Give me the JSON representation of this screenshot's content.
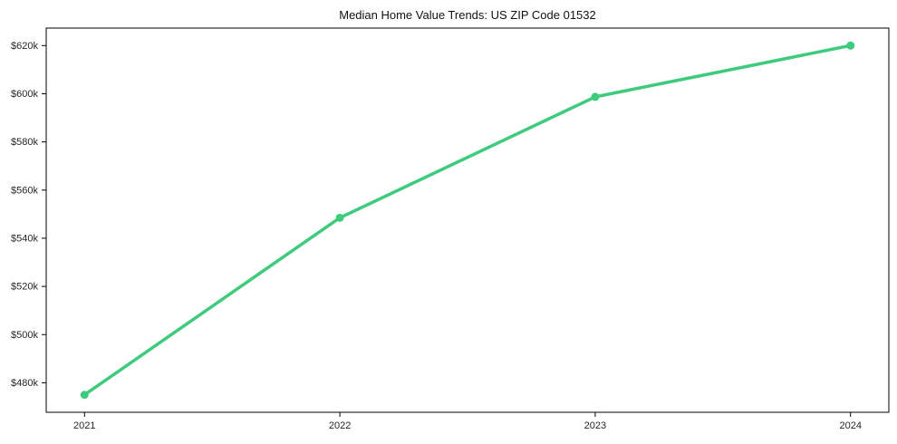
{
  "figure": {
    "background_color": "#ffffff"
  },
  "chart_data": {
    "type": "line",
    "title": "Median Home Value Trends: US ZIP Code 01532",
    "xlabel": "",
    "ylabel": "",
    "x": [
      2021,
      2022,
      2023,
      2024
    ],
    "x_tick_labels": [
      "2021",
      "2022",
      "2023",
      "2024"
    ],
    "series": [
      {
        "values": [
          475000,
          548500,
          598700,
          620000
        ],
        "color": "#3ecb7e",
        "marker": "circle"
      }
    ],
    "y_ticks": [
      480000,
      500000,
      520000,
      540000,
      560000,
      580000,
      600000,
      620000
    ],
    "y_tick_labels": [
      "$480k",
      "$500k",
      "$520k",
      "$540k",
      "$560k",
      "$580k",
      "$600k",
      "$620k"
    ],
    "xlim": [
      2020.85,
      2024.15
    ],
    "ylim": [
      467750,
      627250
    ],
    "grid": false,
    "legend": false,
    "axis_color": "#000000",
    "tick_label_color": "#262626",
    "title_color": "#111111"
  }
}
